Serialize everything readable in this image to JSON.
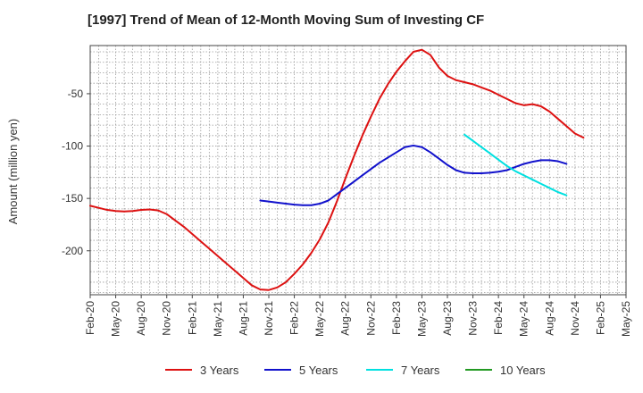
{
  "chart_data": {
    "type": "line",
    "title": "[1997]  Trend of Mean of 12-Month Moving Sum of Investing CF",
    "xlabel": "",
    "ylabel": "Amount (million yen)",
    "ylim": [
      -242,
      -4
    ],
    "yticks": [
      -50,
      -100,
      -150,
      -200
    ],
    "ytick_labels": [
      "-50",
      "-100",
      "-150",
      "-200"
    ],
    "grid": true,
    "x_tick_labels": [
      "Feb-20",
      "May-20",
      "Aug-20",
      "Nov-20",
      "Feb-21",
      "May-21",
      "Aug-21",
      "Nov-21",
      "Feb-22",
      "May-22",
      "Aug-22",
      "Nov-22",
      "Feb-23",
      "May-23",
      "Aug-23",
      "Nov-23",
      "Feb-24",
      "May-24",
      "Aug-24",
      "Nov-24",
      "Feb-25",
      "May-25"
    ],
    "x_tick_months": [
      0,
      3,
      6,
      9,
      12,
      15,
      18,
      21,
      24,
      27,
      30,
      33,
      36,
      39,
      42,
      45,
      48,
      51,
      54,
      57,
      60,
      63
    ],
    "x_range_months": [
      0,
      63
    ],
    "legend_position": "bottom",
    "series": [
      {
        "name": "3 Years",
        "color": "#dd1111",
        "x_start": 0,
        "values": [
          -157,
          -159,
          -161,
          -162,
          -162.5,
          -162,
          -161,
          -160.5,
          -161.5,
          -165,
          -171,
          -177,
          -184,
          -191,
          -198,
          -205,
          -212,
          -219,
          -226,
          -233,
          -237,
          -237.5,
          -235,
          -230,
          -222,
          -213,
          -202,
          -189,
          -173,
          -153,
          -131,
          -110,
          -90,
          -72,
          -55,
          -41,
          -29,
          -19,
          -10,
          -8,
          -13,
          -25,
          -33,
          -37,
          -39,
          -41,
          -44,
          -47,
          -51,
          -55,
          -59,
          -61,
          -60,
          -62,
          -67,
          -74,
          -81,
          -88,
          -92
        ]
      },
      {
        "name": "5 Years",
        "color": "#1111cc",
        "x_start": 20,
        "values": [
          -152,
          -153,
          -154,
          -155,
          -156,
          -156.5,
          -156.5,
          -155,
          -152,
          -146,
          -140,
          -134,
          -128,
          -122,
          -116,
          -111,
          -106,
          -101,
          -99.5,
          -101,
          -106,
          -112,
          -118,
          -123,
          -125.5,
          -126,
          -126,
          -125.5,
          -124.5,
          -123,
          -120,
          -117,
          -115,
          -113.5,
          -113.5,
          -114.5,
          -117
        ]
      },
      {
        "name": "7 Years",
        "color": "#00e0e0",
        "x_start": 44,
        "values": [
          -89,
          -95,
          -101,
          -107,
          -113,
          -119,
          -124,
          -128,
          -132,
          -136,
          -140,
          -144,
          -147
        ]
      },
      {
        "name": "10 Years",
        "color": "#229922",
        "x_start": 44,
        "values": []
      }
    ]
  }
}
